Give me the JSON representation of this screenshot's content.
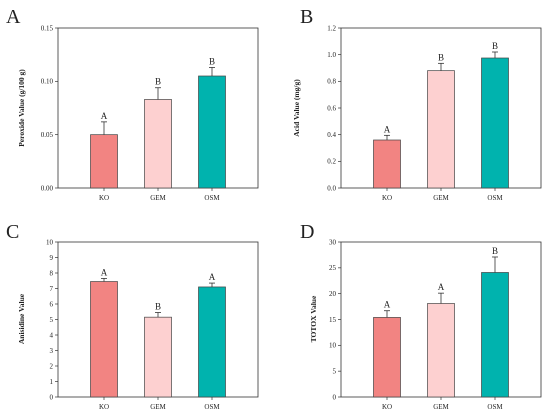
{
  "figure": {
    "panels": [
      {
        "letter": "A",
        "ylabel": "Peroxide Value (g/100 g)"
      },
      {
        "letter": "B",
        "ylabel": "Acid Value (mg/g)"
      },
      {
        "letter": "C",
        "ylabel": "Anisidine Value"
      },
      {
        "letter": "D",
        "ylabel": "TOTOX Value"
      }
    ]
  },
  "chart_data": [
    {
      "type": "bar",
      "panel": "A",
      "title": "",
      "xlabel": "",
      "ylabel": "Peroxide Value (g/100 g)",
      "categories": [
        "KO",
        "GEM",
        "OSM"
      ],
      "values": [
        0.05,
        0.083,
        0.105
      ],
      "errors": [
        0.012,
        0.011,
        0.008
      ],
      "significance": [
        "A",
        "B",
        "B"
      ],
      "colors": [
        "#F28482",
        "#FDD0D0",
        "#00B3AE"
      ],
      "ylim": [
        0,
        0.15
      ],
      "yticks": [
        0.0,
        0.05,
        0.1,
        0.15
      ],
      "ytick_labels": [
        "0.00",
        "0.05",
        "0.10",
        "0.15"
      ]
    },
    {
      "type": "bar",
      "panel": "B",
      "title": "",
      "xlabel": "",
      "ylabel": "Acid Value (mg/g)",
      "categories": [
        "KO",
        "GEM",
        "OSM"
      ],
      "values": [
        0.36,
        0.88,
        0.975
      ],
      "errors": [
        0.035,
        0.055,
        0.045
      ],
      "significance": [
        "A",
        "B",
        "B"
      ],
      "colors": [
        "#F28482",
        "#FDD0D0",
        "#00B3AE"
      ],
      "ylim": [
        0,
        1.2
      ],
      "yticks": [
        0.0,
        0.2,
        0.4,
        0.6,
        0.8,
        1.0,
        1.2
      ],
      "ytick_labels": [
        "0.0",
        "0.2",
        "0.4",
        "0.6",
        "0.8",
        "1.0",
        "1.2"
      ]
    },
    {
      "type": "bar",
      "panel": "C",
      "title": "",
      "xlabel": "",
      "ylabel": "Anisidine Value",
      "categories": [
        "KO",
        "GEM",
        "OSM"
      ],
      "values": [
        7.45,
        5.15,
        7.1
      ],
      "errors": [
        0.2,
        0.3,
        0.25
      ],
      "significance": [
        "A",
        "B",
        "A"
      ],
      "colors": [
        "#F28482",
        "#FDD0D0",
        "#00B3AE"
      ],
      "ylim": [
        0,
        10
      ],
      "yticks": [
        0,
        1,
        2,
        3,
        4,
        5,
        6,
        7,
        8,
        9,
        10
      ],
      "ytick_labels": [
        "0",
        "1",
        "2",
        "3",
        "4",
        "5",
        "6",
        "7",
        "8",
        "9",
        "10"
      ]
    },
    {
      "type": "bar",
      "panel": "D",
      "title": "",
      "xlabel": "",
      "ylabel": "TOTOX Value",
      "categories": [
        "KO",
        "GEM",
        "OSM"
      ],
      "values": [
        15.4,
        18.1,
        24.1
      ],
      "errors": [
        1.3,
        2.0,
        3.0
      ],
      "significance": [
        "A",
        "A",
        "B"
      ],
      "colors": [
        "#F28482",
        "#FDD0D0",
        "#00B3AE"
      ],
      "ylim": [
        0,
        30
      ],
      "yticks": [
        0,
        5,
        10,
        15,
        20,
        25,
        30
      ],
      "ytick_labels": [
        "0",
        "5",
        "10",
        "15",
        "20",
        "25",
        "30"
      ]
    }
  ]
}
